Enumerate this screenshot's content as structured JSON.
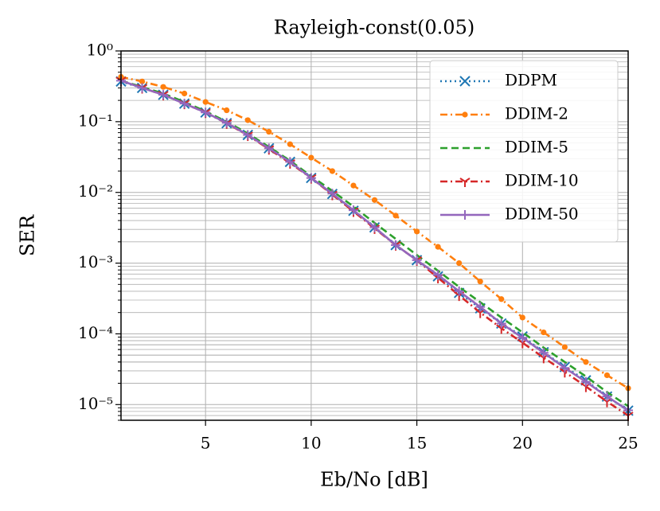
{
  "chart_data": {
    "type": "line",
    "title": "Rayleigh-const(0.05)",
    "x_label": "Eb/No [dB]",
    "y_label": "SER",
    "x": [
      1,
      2,
      3,
      4,
      5,
      6,
      7,
      8,
      9,
      10,
      11,
      12,
      13,
      14,
      15,
      16,
      17,
      18,
      19,
      20,
      21,
      22,
      23,
      24,
      25
    ],
    "xlim": [
      1,
      25
    ],
    "xticks": [
      5,
      10,
      15,
      20,
      25
    ],
    "ylim": [
      6e-06,
      1
    ],
    "y_scale": "log",
    "yticks": [
      {
        "value": 1,
        "label": "10⁰"
      },
      {
        "value": 0.1,
        "label": "10⁻¹"
      },
      {
        "value": 0.01,
        "label": "10⁻²"
      },
      {
        "value": 0.001,
        "label": "10⁻³"
      },
      {
        "value": 0.0001,
        "label": "10⁻⁴"
      },
      {
        "value": 1e-05,
        "label": "10⁻⁵"
      }
    ],
    "grid": true,
    "legend": "upper right",
    "series": [
      {
        "name": "DDPM",
        "color": "#1f77b4",
        "marker": "x",
        "linestyle": "dotted",
        "values": [
          0.37,
          0.3,
          0.24,
          0.18,
          0.135,
          0.095,
          0.065,
          0.042,
          0.027,
          0.016,
          0.0095,
          0.0055,
          0.0032,
          0.0018,
          0.0011,
          0.00065,
          0.00038,
          0.00023,
          0.00014,
          9.2e-05,
          5.5e-05,
          3.4e-05,
          2.2e-05,
          1.3e-05,
          8.2e-06
        ]
      },
      {
        "name": "DDIM-2",
        "color": "#ff7f0e",
        "marker": "dot",
        "linestyle": "dashdot",
        "values": [
          0.43,
          0.37,
          0.31,
          0.25,
          0.19,
          0.145,
          0.105,
          0.072,
          0.048,
          0.031,
          0.02,
          0.0125,
          0.0078,
          0.0047,
          0.0028,
          0.0017,
          0.001,
          0.00055,
          0.00031,
          0.00017,
          0.000105,
          6.5e-05,
          4e-05,
          2.6e-05,
          1.7e-05
        ]
      },
      {
        "name": "DDIM-5",
        "color": "#2ca02c",
        "marker": "none",
        "linestyle": "dashed",
        "values": [
          0.38,
          0.31,
          0.25,
          0.19,
          0.14,
          0.1,
          0.068,
          0.044,
          0.028,
          0.017,
          0.0105,
          0.0063,
          0.0037,
          0.0022,
          0.0013,
          0.00078,
          0.00046,
          0.00028,
          0.00017,
          0.000105,
          6.4e-05,
          4e-05,
          2.5e-05,
          1.5e-05,
          9.5e-06
        ]
      },
      {
        "name": "DDIM-10",
        "color": "#d62728",
        "marker": "tri",
        "linestyle": "dashdot",
        "values": [
          0.38,
          0.3,
          0.24,
          0.18,
          0.135,
          0.095,
          0.064,
          0.041,
          0.026,
          0.016,
          0.0093,
          0.0054,
          0.0031,
          0.0018,
          0.0011,
          0.00062,
          0.00035,
          0.0002,
          0.00012,
          7.5e-05,
          4.6e-05,
          2.9e-05,
          1.8e-05,
          1.1e-05,
          7e-06
        ]
      },
      {
        "name": "DDIM-50",
        "color": "#9467bd",
        "marker": "plus",
        "linestyle": "solid",
        "values": [
          0.38,
          0.3,
          0.24,
          0.18,
          0.135,
          0.096,
          0.065,
          0.042,
          0.027,
          0.016,
          0.0096,
          0.0056,
          0.0032,
          0.0018,
          0.0011,
          0.00068,
          0.0004,
          0.00024,
          0.00014,
          8.8e-05,
          5.4e-05,
          3.3e-05,
          2.1e-05,
          1.3e-05,
          8.3e-06
        ]
      }
    ]
  }
}
